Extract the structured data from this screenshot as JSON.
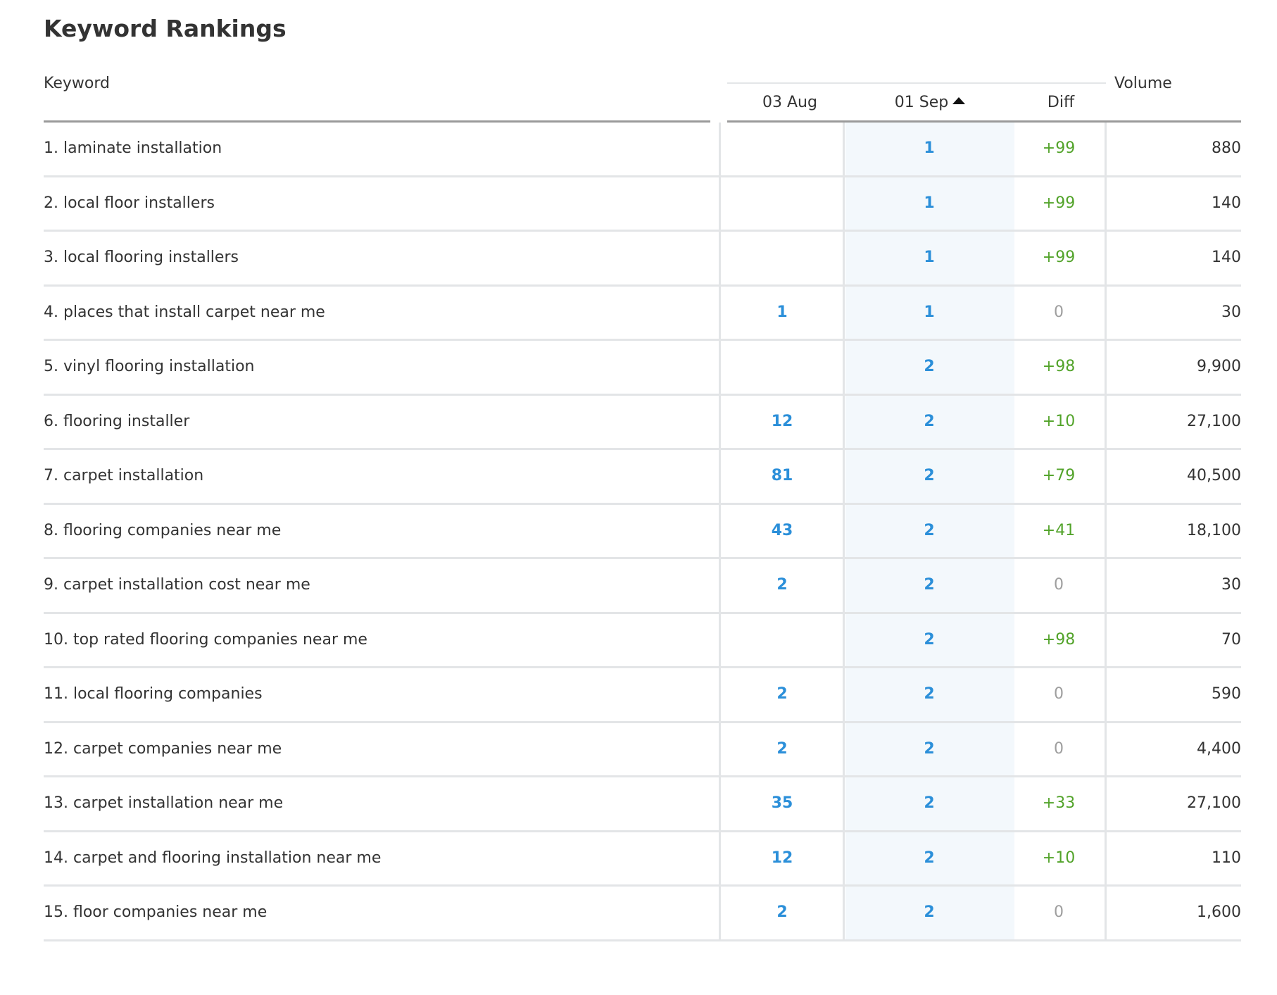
{
  "title": "Keyword Rankings",
  "columns": {
    "keyword": "Keyword",
    "date1": "03 Aug",
    "date2": "01 Sep",
    "diff": "Diff",
    "volume": "Volume"
  },
  "sort": {
    "column": "01 Sep",
    "icon": "sort-ascending-icon"
  },
  "colors": {
    "rank": "#2b8fd9",
    "diff_positive": "#52a32a",
    "diff_zero": "#9e9e9e",
    "sorted_column_bg": "#f3f8fc"
  },
  "rows": [
    {
      "keyword": "1. laminate installation",
      "aug": "",
      "sep": "1",
      "diff": "+99",
      "volume": "880"
    },
    {
      "keyword": "2. local floor installers",
      "aug": "",
      "sep": "1",
      "diff": "+99",
      "volume": "140"
    },
    {
      "keyword": "3. local flooring installers",
      "aug": "",
      "sep": "1",
      "diff": "+99",
      "volume": "140"
    },
    {
      "keyword": "4. places that install carpet near me",
      "aug": "1",
      "sep": "1",
      "diff": "0",
      "volume": "30"
    },
    {
      "keyword": "5. vinyl flooring installation",
      "aug": "",
      "sep": "2",
      "diff": "+98",
      "volume": "9,900"
    },
    {
      "keyword": "6. flooring installer",
      "aug": "12",
      "sep": "2",
      "diff": "+10",
      "volume": "27,100"
    },
    {
      "keyword": "7. carpet installation",
      "aug": "81",
      "sep": "2",
      "diff": "+79",
      "volume": "40,500"
    },
    {
      "keyword": "8. flooring companies near me",
      "aug": "43",
      "sep": "2",
      "diff": "+41",
      "volume": "18,100"
    },
    {
      "keyword": "9. carpet installation cost near me",
      "aug": "2",
      "sep": "2",
      "diff": "0",
      "volume": "30"
    },
    {
      "keyword": "10. top rated flooring companies near me",
      "aug": "",
      "sep": "2",
      "diff": "+98",
      "volume": "70"
    },
    {
      "keyword": "11. local flooring companies",
      "aug": "2",
      "sep": "2",
      "diff": "0",
      "volume": "590"
    },
    {
      "keyword": "12. carpet companies near me",
      "aug": "2",
      "sep": "2",
      "diff": "0",
      "volume": "4,400"
    },
    {
      "keyword": "13. carpet installation near me",
      "aug": "35",
      "sep": "2",
      "diff": "+33",
      "volume": "27,100"
    },
    {
      "keyword": "14. carpet and flooring installation near me",
      "aug": "12",
      "sep": "2",
      "diff": "+10",
      "volume": "110"
    },
    {
      "keyword": "15. floor companies near me",
      "aug": "2",
      "sep": "2",
      "diff": "0",
      "volume": "1,600"
    }
  ]
}
